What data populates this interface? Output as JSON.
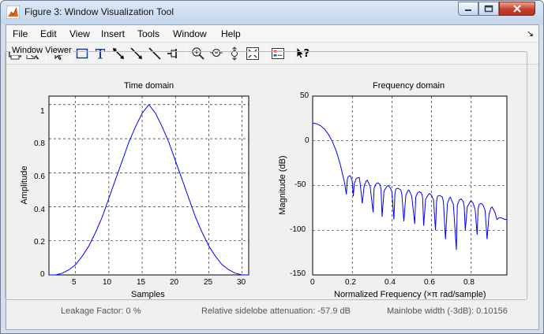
{
  "window": {
    "title": "Figure 3: Window Visualization Tool"
  },
  "menu": {
    "items": [
      "File",
      "Edit",
      "View",
      "Insert",
      "Tools",
      "Window",
      "Help"
    ]
  },
  "toolbar": {
    "tools": [
      "print-icon",
      "print-preview-icon",
      "select-pointer-icon",
      "rectangle-icon",
      "text-insert-icon",
      "double-arrow-icon",
      "arrow-icon",
      "line-icon",
      "pin-icon",
      "zoom-in-icon",
      "zoom-out-icon",
      "pan-icon",
      "fit-icon",
      "legend-icon",
      "whats-this-icon"
    ]
  },
  "panel": {
    "title": "Window Viewer"
  },
  "time_plot": {
    "title": "Time domain",
    "xlabel": "Samples",
    "ylabel": "Amplitude",
    "xticks": [
      "5",
      "10",
      "15",
      "20",
      "25",
      "30"
    ],
    "yticks": [
      "0",
      "0.2",
      "0.4",
      "0.6",
      "0.8",
      "1"
    ]
  },
  "freq_plot": {
    "title": "Frequency domain",
    "xlabel": "Normalized Frequency  (×π rad/sample)",
    "ylabel": "Magnitude (dB)",
    "xticks": [
      "0",
      "0.2",
      "0.4",
      "0.6",
      "0.8"
    ],
    "yticks": [
      "50",
      "0",
      "-50",
      "-100",
      "-150"
    ]
  },
  "status": {
    "leakage": "Leakage Factor: 0 %",
    "sidelobe": "Relative sidelobe attenuation: -57.9 dB",
    "mainlobe": "Mainlobe width (-3dB): 0.10156"
  },
  "chart_data": [
    {
      "type": "line",
      "title": "Time domain",
      "xlabel": "Samples",
      "ylabel": "Amplitude",
      "xlim": [
        1,
        31
      ],
      "ylim": [
        0,
        1.05
      ],
      "grid": true,
      "series": [
        {
          "color": "#0000ff",
          "x": [
            1,
            2,
            3,
            4,
            5,
            6,
            7,
            8,
            9,
            10,
            11,
            12,
            13,
            14,
            15,
            16,
            17,
            18,
            19,
            20,
            21,
            22,
            23,
            24,
            25,
            26,
            27,
            28,
            29,
            30,
            31
          ],
          "values": [
            0.0,
            0.0,
            0.01,
            0.03,
            0.06,
            0.11,
            0.17,
            0.25,
            0.34,
            0.45,
            0.56,
            0.67,
            0.78,
            0.87,
            0.95,
            1.0,
            0.95,
            0.87,
            0.78,
            0.67,
            0.56,
            0.45,
            0.34,
            0.25,
            0.17,
            0.11,
            0.06,
            0.03,
            0.01,
            0.0,
            0.0
          ]
        }
      ]
    },
    {
      "type": "line",
      "title": "Frequency domain",
      "xlabel": "Normalized Frequency  (×π rad/sample)",
      "ylabel": "Magnitude (dB)",
      "xlim": [
        0,
        0.98
      ],
      "ylim": [
        -150,
        50
      ],
      "grid": true,
      "series": [
        {
          "color": "#0000ff",
          "x": [
            0,
            0.02,
            0.04,
            0.06,
            0.08,
            0.1,
            0.12,
            0.14,
            0.16,
            0.17,
            0.175,
            0.18,
            0.19,
            0.2,
            0.205,
            0.21,
            0.22,
            0.235,
            0.24,
            0.25,
            0.26,
            0.27,
            0.275,
            0.28,
            0.29,
            0.305,
            0.31,
            0.32,
            0.33,
            0.34,
            0.345,
            0.35,
            0.36,
            0.375,
            0.38,
            0.39,
            0.4,
            0.41,
            0.415,
            0.42,
            0.43,
            0.445,
            0.45,
            0.46,
            0.47,
            0.48,
            0.485,
            0.49,
            0.5,
            0.515,
            0.52,
            0.53,
            0.54,
            0.55,
            0.555,
            0.56,
            0.57,
            0.585,
            0.59,
            0.6,
            0.61,
            0.62,
            0.625,
            0.63,
            0.64,
            0.655,
            0.66,
            0.67,
            0.68,
            0.69,
            0.695,
            0.7,
            0.71,
            0.725,
            0.73,
            0.74,
            0.75,
            0.76,
            0.765,
            0.77,
            0.78,
            0.795,
            0.8,
            0.81,
            0.82,
            0.83,
            0.835,
            0.84,
            0.85,
            0.86,
            0.87,
            0.88,
            0.89,
            0.9,
            0.905,
            0.91,
            0.92,
            0.93,
            0.94,
            0.95,
            0.96,
            0.97,
            0.98
          ],
          "values": [
            20,
            19,
            17,
            13,
            7,
            -1,
            -12,
            -27,
            -46,
            -60,
            -43,
            -40,
            -39,
            -45,
            -62,
            -48,
            -42,
            -41,
            -48,
            -70,
            -50,
            -45,
            -44,
            -46,
            -51,
            -80,
            -53,
            -48,
            -47,
            -49,
            -54,
            -85,
            -56,
            -51,
            -50,
            -52,
            -57,
            -88,
            -59,
            -54,
            -53,
            -55,
            -60,
            -90,
            -61,
            -56,
            -55,
            -57,
            -62,
            -93,
            -63,
            -58,
            -57,
            -59,
            -64,
            -95,
            -65,
            -60,
            -59,
            -61,
            -66,
            -100,
            -68,
            -62,
            -61,
            -63,
            -69,
            -110,
            -70,
            -64,
            -63,
            -66,
            -71,
            -122,
            -72,
            -66,
            -65,
            -68,
            -74,
            -100,
            -74,
            -68,
            -67,
            -70,
            -77,
            -105,
            -76,
            -71,
            -70,
            -72,
            -78,
            -110,
            -82,
            -75,
            -74,
            -76,
            -80,
            -88,
            -86,
            -86,
            -87,
            -88,
            -88
          ]
        }
      ]
    }
  ]
}
